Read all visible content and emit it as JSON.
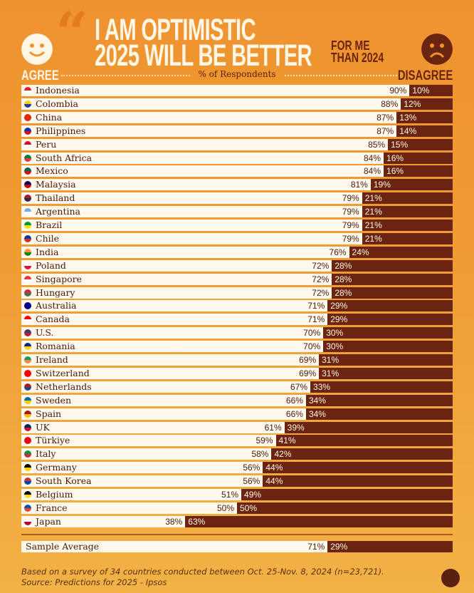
{
  "header": {
    "title_line1": "I AM OPTIMISTIC",
    "title_line2": "2025 WILL BE BETTER",
    "title_suffix_line1": "FOR ME",
    "title_suffix_line2": "THAN 2024",
    "agree_label": "AGREE",
    "disagree_label": "DISAGREE",
    "axis_label": "% of Respondents"
  },
  "colors": {
    "agree": "#fff8ec",
    "disagree": "#6b2410",
    "background": "#f09c35"
  },
  "chart_data": {
    "type": "bar",
    "stacked": true,
    "orientation": "horizontal",
    "series": [
      {
        "name": "AGREE"
      },
      {
        "name": "DISAGREE"
      }
    ],
    "rows": [
      {
        "country": "Indonesia",
        "agree": 90,
        "disagree": 10,
        "flag": [
          "#e0202a",
          "#ffffff"
        ]
      },
      {
        "country": "Colombia",
        "agree": 88,
        "disagree": 12,
        "flag": [
          "#f7d117",
          "#1f3c9a"
        ]
      },
      {
        "country": "China",
        "agree": 87,
        "disagree": 13,
        "flag": [
          "#de2910",
          "#de2910"
        ]
      },
      {
        "country": "Philippines",
        "agree": 87,
        "disagree": 14,
        "flag": [
          "#0038a8",
          "#ce1126"
        ]
      },
      {
        "country": "Peru",
        "agree": 85,
        "disagree": 15,
        "flag": [
          "#d91023",
          "#ffffff"
        ]
      },
      {
        "country": "South Africa",
        "agree": 84,
        "disagree": 16,
        "flag": [
          "#007a4d",
          "#de3831"
        ]
      },
      {
        "country": "Mexico",
        "agree": 84,
        "disagree": 16,
        "flag": [
          "#006847",
          "#ce1126"
        ]
      },
      {
        "country": "Malaysia",
        "agree": 81,
        "disagree": 19,
        "flag": [
          "#010066",
          "#cc0001"
        ]
      },
      {
        "country": "Thailand",
        "agree": 79,
        "disagree": 21,
        "flag": [
          "#a51931",
          "#2d2a4a"
        ]
      },
      {
        "country": "Argentina",
        "agree": 79,
        "disagree": 21,
        "flag": [
          "#74acdf",
          "#ffffff"
        ]
      },
      {
        "country": "Brazil",
        "agree": 79,
        "disagree": 21,
        "flag": [
          "#009c3b",
          "#ffdf00"
        ]
      },
      {
        "country": "Chile",
        "agree": 79,
        "disagree": 21,
        "flag": [
          "#0039a6",
          "#d52b1e"
        ]
      },
      {
        "country": "India",
        "agree": 76,
        "disagree": 24,
        "flag": [
          "#ff9933",
          "#138808"
        ]
      },
      {
        "country": "Poland",
        "agree": 72,
        "disagree": 28,
        "flag": [
          "#ffffff",
          "#dc143c"
        ]
      },
      {
        "country": "Singapore",
        "agree": 72,
        "disagree": 28,
        "flag": [
          "#ef3340",
          "#ffffff"
        ]
      },
      {
        "country": "Hungary",
        "agree": 72,
        "disagree": 28,
        "flag": [
          "#ce2939",
          "#477050"
        ]
      },
      {
        "country": "Australia",
        "agree": 71,
        "disagree": 29,
        "flag": [
          "#00008b",
          "#00008b"
        ]
      },
      {
        "country": "Canada",
        "agree": 71,
        "disagree": 29,
        "flag": [
          "#ff0000",
          "#ffffff"
        ]
      },
      {
        "country": "U.S.",
        "agree": 70,
        "disagree": 30,
        "flag": [
          "#3c3b6e",
          "#b22234"
        ]
      },
      {
        "country": "Romania",
        "agree": 70,
        "disagree": 30,
        "flag": [
          "#002b7f",
          "#fcd116"
        ]
      },
      {
        "country": "Ireland",
        "agree": 69,
        "disagree": 31,
        "flag": [
          "#169b62",
          "#ff883e"
        ]
      },
      {
        "country": "Switzerland",
        "agree": 69,
        "disagree": 31,
        "flag": [
          "#ff0000",
          "#ff0000"
        ]
      },
      {
        "country": "Netherlands",
        "agree": 67,
        "disagree": 33,
        "flag": [
          "#ae1c28",
          "#21468b"
        ]
      },
      {
        "country": "Sweden",
        "agree": 66,
        "disagree": 34,
        "flag": [
          "#006aa7",
          "#fecc00"
        ]
      },
      {
        "country": "Spain",
        "agree": 66,
        "disagree": 34,
        "flag": [
          "#aa151b",
          "#f1bf00"
        ]
      },
      {
        "country": "UK",
        "agree": 61,
        "disagree": 39,
        "flag": [
          "#012169",
          "#c8102e"
        ]
      },
      {
        "country": "Türkiye",
        "agree": 59,
        "disagree": 41,
        "flag": [
          "#e30a17",
          "#e30a17"
        ]
      },
      {
        "country": "Italy",
        "agree": 58,
        "disagree": 42,
        "flag": [
          "#009246",
          "#ce2b37"
        ]
      },
      {
        "country": "Germany",
        "agree": 56,
        "disagree": 44,
        "flag": [
          "#000000",
          "#ffce00"
        ]
      },
      {
        "country": "South Korea",
        "agree": 56,
        "disagree": 44,
        "flag": [
          "#cd2e3a",
          "#0047a0"
        ]
      },
      {
        "country": "Belgium",
        "agree": 51,
        "disagree": 49,
        "flag": [
          "#000000",
          "#fdda24"
        ]
      },
      {
        "country": "France",
        "agree": 50,
        "disagree": 50,
        "flag": [
          "#0055a4",
          "#ef4135"
        ]
      },
      {
        "country": "Japan",
        "agree": 38,
        "disagree": 63,
        "flag": [
          "#ffffff",
          "#bc002d"
        ]
      }
    ],
    "average": {
      "country": "Sample Average",
      "agree": 71,
      "disagree": 29
    }
  },
  "footer": {
    "note": "Based on a survey of 34 countries conducted between Oct. 25-Nov. 8, 2024 (n=23,721).",
    "source": "Source: Predictions for 2025 - Ipsos"
  }
}
